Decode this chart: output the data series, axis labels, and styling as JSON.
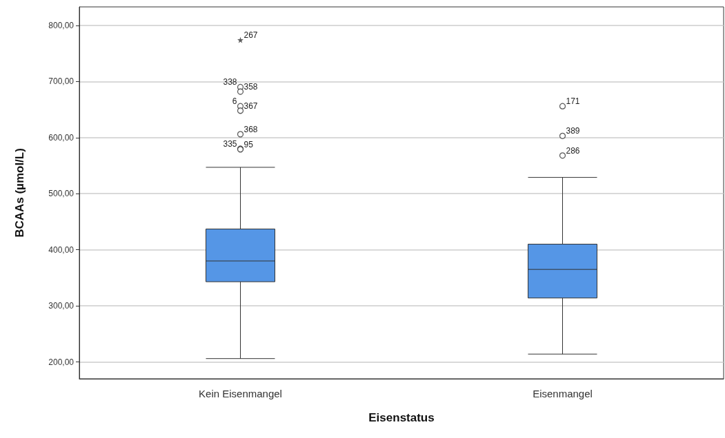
{
  "chart_data": {
    "type": "box",
    "xlabel": "Eisenstatus",
    "ylabel": "BCAAs (µmol/L)",
    "categories": [
      "Kein Eisenmangel",
      "Eisenmangel"
    ],
    "ylim": [
      170,
      833
    ],
    "yticks": [
      {
        "value": 200,
        "label": "200,00"
      },
      {
        "value": 300,
        "label": "300,00"
      },
      {
        "value": 400,
        "label": "400,00"
      },
      {
        "value": 500,
        "label": "500,00"
      },
      {
        "value": 600,
        "label": "600,00"
      },
      {
        "value": 700,
        "label": "700,00"
      },
      {
        "value": 800,
        "label": "800,00"
      }
    ],
    "grid": "y",
    "series": [
      {
        "type": "box",
        "color": "#5596e6",
        "boxes": [
          {
            "low": 206,
            "q1": 343,
            "median": 380,
            "q3": 437,
            "high": 547
          },
          {
            "low": 214,
            "q1": 314,
            "median": 365,
            "q3": 410,
            "high": 529
          }
        ]
      },
      {
        "type": "scatter",
        "color": "#333333",
        "marker": "circle",
        "x": [
          "Kein Eisenmangel",
          "Kein Eisenmangel",
          "Kein Eisenmangel",
          "Kein Eisenmangel",
          "Kein Eisenmangel",
          "Kein Eisenmangel",
          "Kein Eisenmangel",
          "Eisenmangel",
          "Eisenmangel",
          "Eisenmangel"
        ],
        "values": [
          690,
          682,
          656,
          648,
          606,
          580,
          579,
          656,
          603,
          568
        ]
      },
      {
        "type": "scatter",
        "color": "#333333",
        "marker": "star",
        "x": [
          "Kein Eisenmangel"
        ],
        "values": [
          774
        ]
      }
    ],
    "annotations": [
      {
        "text": "267",
        "x": "Kein Eisenmangel",
        "y": 774
      },
      {
        "text": "338",
        "x": "Kein Eisenmangel",
        "y": 690
      },
      {
        "text": "358",
        "x": "Kein Eisenmangel",
        "y": 682
      },
      {
        "text": "6",
        "x": "Kein Eisenmangel",
        "y": 656
      },
      {
        "text": "367",
        "x": "Kein Eisenmangel",
        "y": 648
      },
      {
        "text": "368",
        "x": "Kein Eisenmangel",
        "y": 606
      },
      {
        "text": "335",
        "x": "Kein Eisenmangel",
        "y": 580
      },
      {
        "text": "95",
        "x": "Kein Eisenmangel",
        "y": 579
      },
      {
        "text": "171",
        "x": "Eisenmangel",
        "y": 656
      },
      {
        "text": "389",
        "x": "Eisenmangel",
        "y": 603
      },
      {
        "text": "286",
        "x": "Eisenmangel",
        "y": 568
      }
    ]
  }
}
